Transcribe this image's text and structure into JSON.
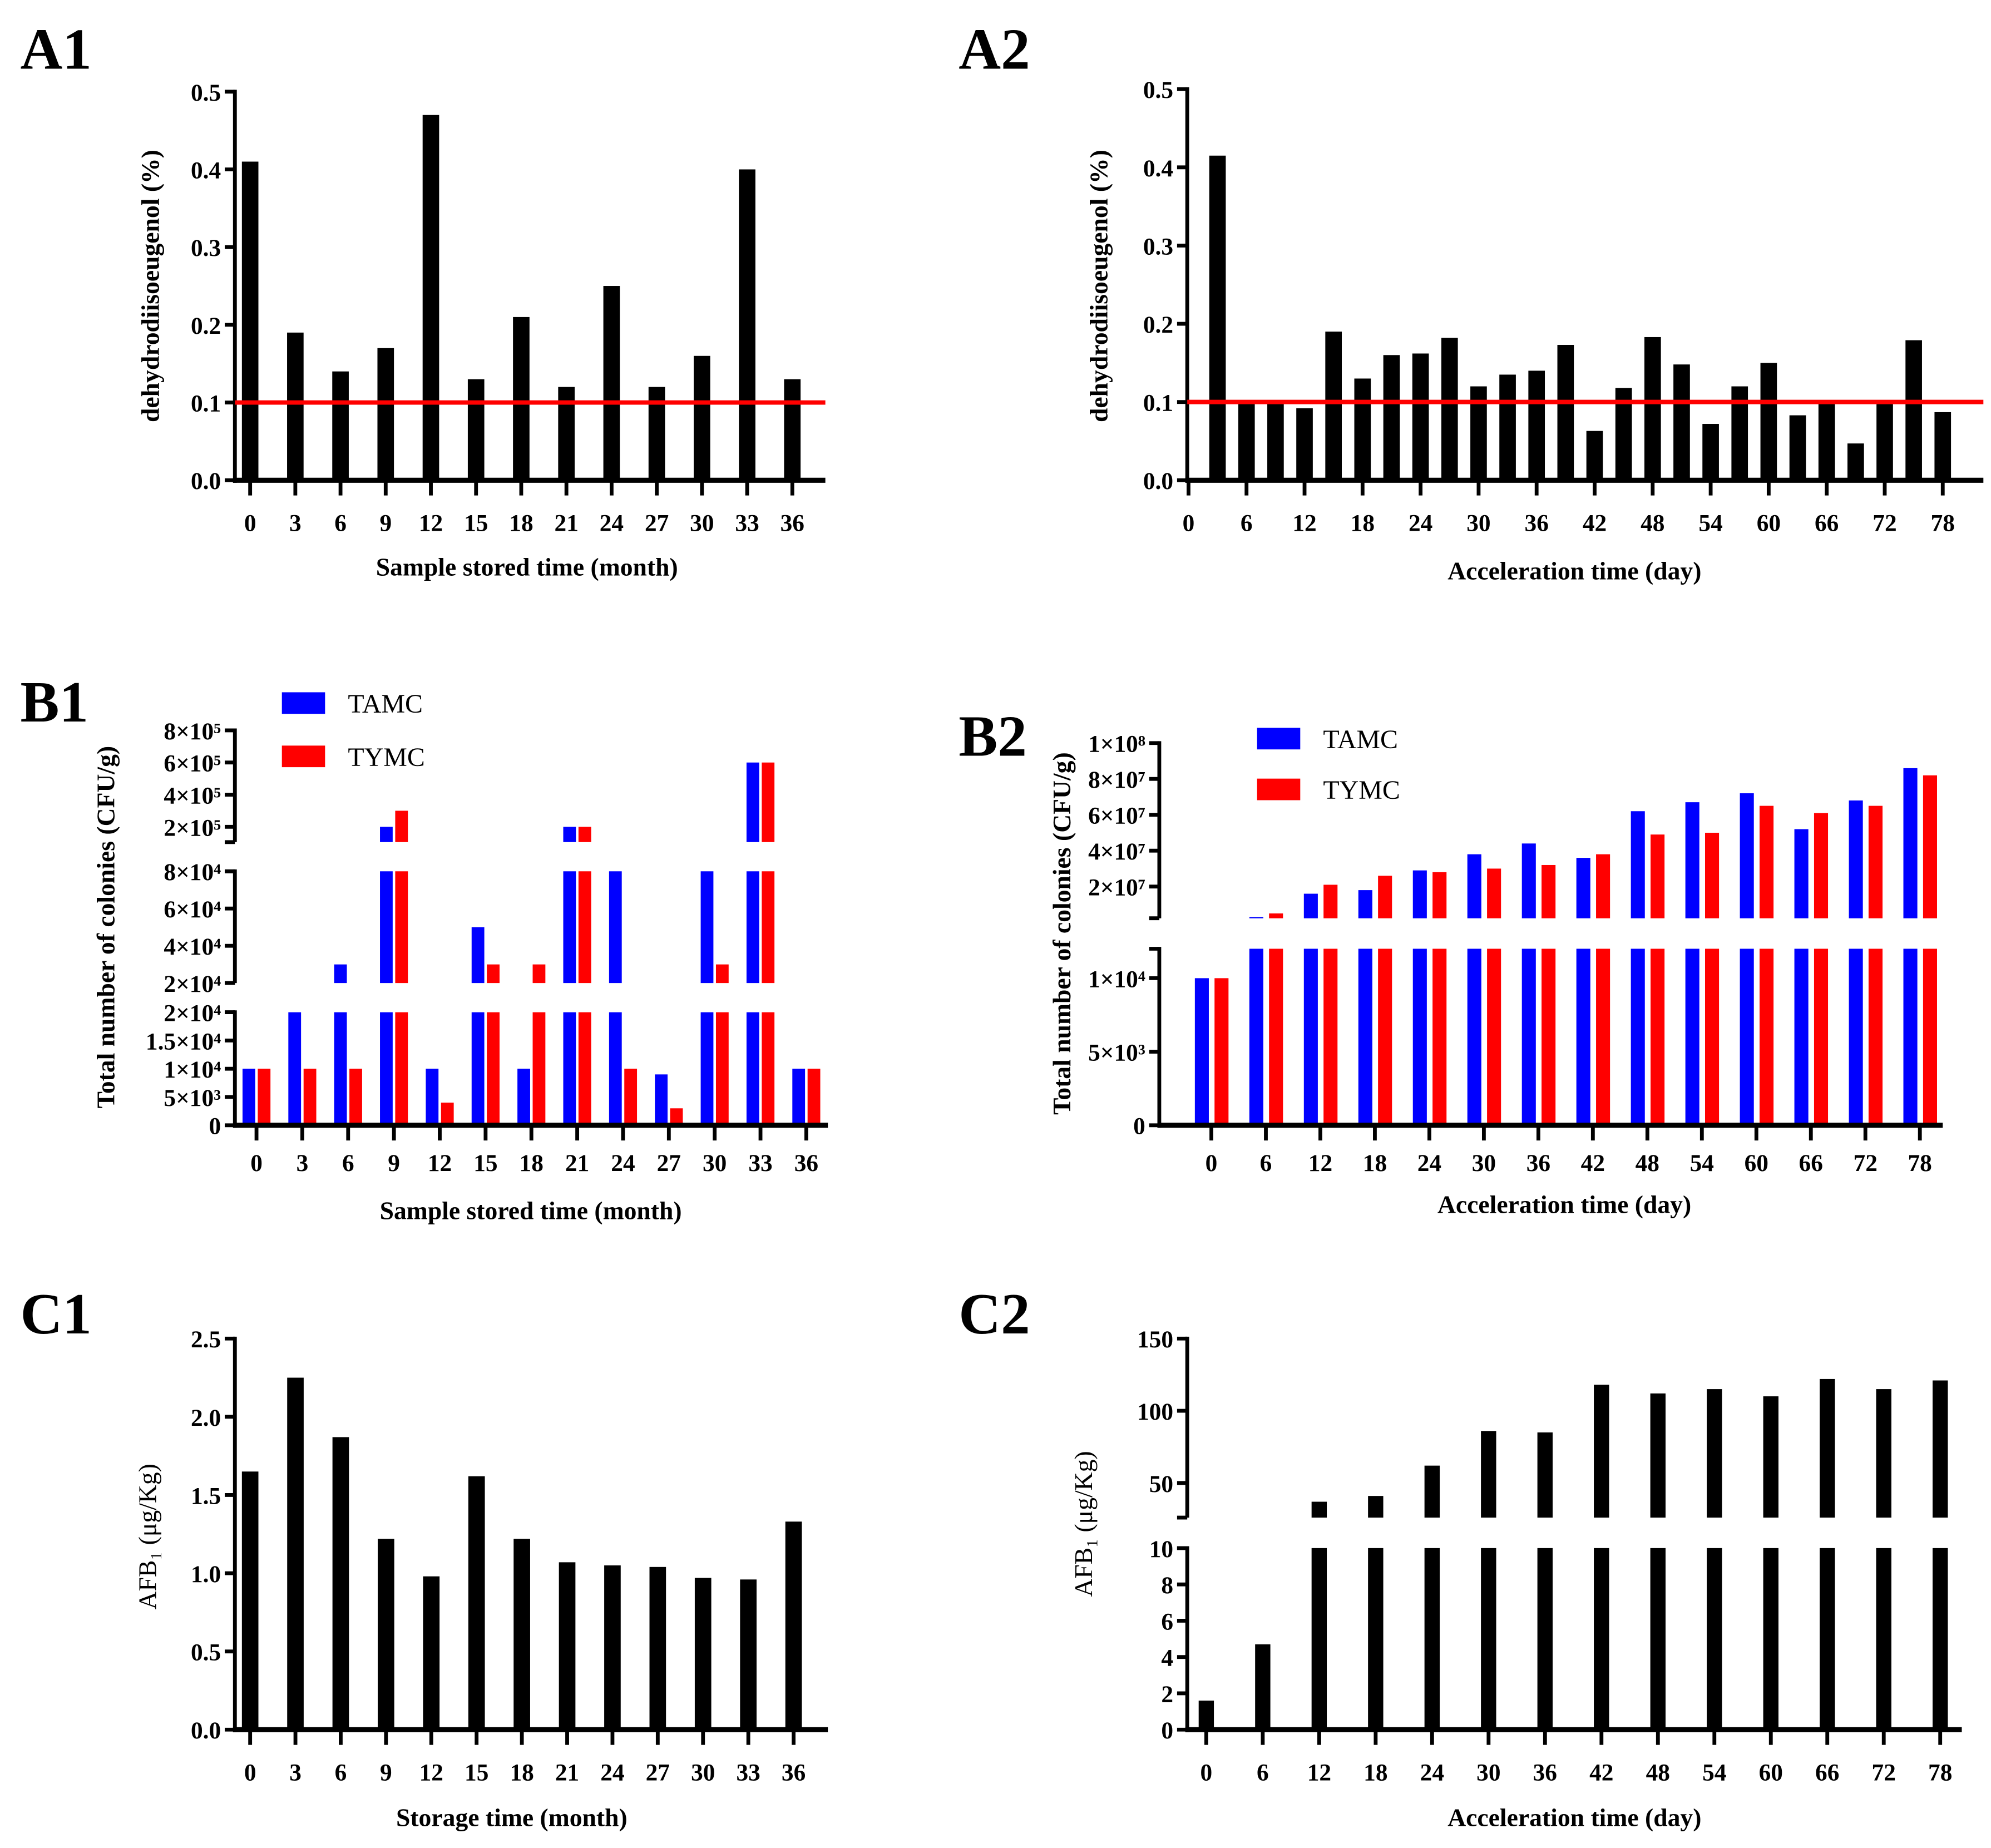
{
  "chart_data": [
    {
      "panel": "A1",
      "type": "bar",
      "xlabel": "Sample stored time (month)",
      "ylabel": "dehydrodiisoeugenol (%)",
      "xticks": [
        0,
        3,
        6,
        9,
        12,
        15,
        18,
        21,
        24,
        27,
        30,
        33,
        36
      ],
      "xtick_labels": [
        "0",
        "3",
        "6",
        "9",
        "12",
        "15",
        "18",
        "21",
        "24",
        "27",
        "30",
        "33",
        "36"
      ],
      "yticks": [
        0,
        0.1,
        0.2,
        0.3,
        0.4,
        0.5
      ],
      "ytick_labels": [
        "0.0",
        "0.1",
        "0.2",
        "0.3",
        "0.4",
        "0.5"
      ],
      "ylim": [
        0,
        0.5
      ],
      "series": [
        {
          "name": "dehydrodiisoeugenol",
          "color": "#000000",
          "x": [
            0,
            3,
            6,
            9,
            12,
            15,
            18,
            21,
            24,
            27,
            30,
            33,
            36
          ],
          "values": [
            0.41,
            0.19,
            0.14,
            0.17,
            0.47,
            0.13,
            0.21,
            0.12,
            0.25,
            0.12,
            0.16,
            0.4,
            0.13
          ]
        }
      ],
      "reference_line": {
        "value": 0.1,
        "color": "#ff0000"
      }
    },
    {
      "panel": "A2",
      "type": "bar",
      "xlabel": "Acceleration time (day)",
      "ylabel": "dehydrodiisoeugenol (%)",
      "xticks": [
        0,
        6,
        12,
        18,
        24,
        30,
        36,
        42,
        48,
        54,
        60,
        66,
        72,
        78
      ],
      "xtick_labels": [
        "0",
        "6",
        "12",
        "18",
        "24",
        "30",
        "36",
        "42",
        "48",
        "54",
        "60",
        "66",
        "72",
        "78"
      ],
      "yticks": [
        0,
        0.1,
        0.2,
        0.3,
        0.4,
        0.5
      ],
      "ytick_labels": [
        "0.0",
        "0.1",
        "0.2",
        "0.3",
        "0.4",
        "0.5"
      ],
      "ylim": [
        0,
        0.5
      ],
      "series": [
        {
          "name": "dehydrodiisoeugenol",
          "color": "#000000",
          "x": [
            3,
            6,
            9,
            12,
            15,
            18,
            21,
            24,
            27,
            30,
            33,
            36,
            39,
            42,
            45,
            48,
            51,
            54,
            57,
            60,
            63,
            66,
            69,
            72,
            75,
            78
          ],
          "values": [
            0.415,
            0.1,
            0.1,
            0.092,
            0.19,
            0.13,
            0.16,
            0.162,
            0.182,
            0.12,
            0.135,
            0.14,
            0.173,
            0.063,
            0.118,
            0.183,
            0.148,
            0.072,
            0.12,
            0.15,
            0.083,
            0.1,
            0.047,
            0.102,
            0.179,
            0.087
          ]
        }
      ],
      "reference_line": {
        "value": 0.1,
        "color": "#ff0000"
      }
    },
    {
      "panel": "B1",
      "type": "bar",
      "xlabel": "Sample stored time (month)",
      "ylabel": "Total number of colonies (CFU/g)",
      "xticks": [
        0,
        3,
        6,
        9,
        12,
        15,
        18,
        21,
        24,
        27,
        30,
        33,
        36
      ],
      "xtick_labels": [
        "0",
        "3",
        "6",
        "9",
        "12",
        "15",
        "18",
        "21",
        "24",
        "27",
        "30",
        "33",
        "36"
      ],
      "yticks": [
        0,
        5000,
        10000,
        15000,
        20000,
        20000.001,
        40000,
        60000,
        80000,
        200000,
        400000,
        600000,
        800000
      ],
      "ytick_labels": [
        "0",
        "5×10³",
        "1×10⁴",
        "1.5×10⁴",
        "2×10⁴",
        "2×10⁴",
        "4×10⁴",
        "6×10⁴",
        "8×10⁴",
        "2×10⁵",
        "4×10⁵",
        "6×10⁵",
        "8×10⁵"
      ],
      "axis_breaks": [
        [
          20000,
          20000
        ],
        [
          80000,
          105000
        ]
      ],
      "ylim": [
        0,
        800000
      ],
      "legend": "top-left",
      "series": [
        {
          "name": "TAMC",
          "color": "#0000ff",
          "x": [
            0,
            3,
            6,
            9,
            12,
            15,
            18,
            21,
            24,
            27,
            30,
            33,
            36
          ],
          "values": [
            10000,
            20000,
            30000,
            200000,
            10000,
            50000,
            10000,
            200000,
            80000,
            9000,
            80000,
            600000,
            10000
          ]
        },
        {
          "name": "TYMC",
          "color": "#ff0000",
          "x": [
            0,
            3,
            6,
            9,
            12,
            15,
            18,
            21,
            24,
            27,
            30,
            33,
            36
          ],
          "values": [
            10000,
            10000,
            10000,
            300000,
            4000,
            30000,
            30000,
            200000,
            10000,
            3000,
            30000,
            600000,
            10000
          ]
        }
      ]
    },
    {
      "panel": "B2",
      "type": "bar",
      "xlabel": "Acceleration time (day)",
      "ylabel": "Total number of colonies (CFU/g)",
      "xticks": [
        0,
        6,
        12,
        18,
        24,
        30,
        36,
        42,
        48,
        54,
        60,
        66,
        72,
        78
      ],
      "xtick_labels": [
        "0",
        "6",
        "12",
        "18",
        "24",
        "30",
        "36",
        "42",
        "48",
        "54",
        "60",
        "66",
        "72",
        "78"
      ],
      "yticks": [
        0,
        5000,
        10000,
        20000000,
        40000000,
        60000000,
        80000000,
        100000000
      ],
      "ytick_labels": [
        "0",
        "5×10³",
        "1×10⁴",
        "2×10⁷",
        "4×10⁷",
        "6×10⁷",
        "8×10⁷",
        "1×10⁸"
      ],
      "axis_breaks": [
        [
          12000,
          2300000
        ]
      ],
      "ylim": [
        0,
        100000000
      ],
      "legend": "top-left",
      "series": [
        {
          "name": "TAMC",
          "color": "#0000ff",
          "x": [
            0,
            6,
            12,
            18,
            24,
            30,
            36,
            42,
            48,
            54,
            60,
            66,
            72,
            78
          ],
          "values": [
            10000,
            3000000,
            16000000,
            18000000,
            29000000,
            38000000,
            44000000,
            36000000,
            62000000,
            67000000,
            72000000,
            52000000,
            68000000,
            86000000
          ]
        },
        {
          "name": "TYMC",
          "color": "#ff0000",
          "x": [
            0,
            6,
            12,
            18,
            24,
            30,
            36,
            42,
            48,
            54,
            60,
            66,
            72,
            78
          ],
          "values": [
            10000,
            5000000,
            21000000,
            26000000,
            28000000,
            30000000,
            32000000,
            38000000,
            49000000,
            50000000,
            65000000,
            61000000,
            65000000,
            82000000
          ]
        }
      ]
    },
    {
      "panel": "C1",
      "type": "bar",
      "xlabel": "Storage time (month)",
      "ylabel": "AFB₁ (μg/Kg)",
      "xticks": [
        0,
        3,
        6,
        9,
        12,
        15,
        18,
        21,
        24,
        27,
        30,
        33,
        36
      ],
      "xtick_labels": [
        "0",
        "3",
        "6",
        "9",
        "12",
        "15",
        "18",
        "21",
        "24",
        "27",
        "30",
        "33",
        "36"
      ],
      "yticks": [
        0,
        0.5,
        1.0,
        1.5,
        2.0,
        2.5
      ],
      "ytick_labels": [
        "0.0",
        "0.5",
        "1.0",
        "1.5",
        "2.0",
        "2.5"
      ],
      "ylim": [
        0,
        2.5
      ],
      "series": [
        {
          "name": "AFB1",
          "color": "#000000",
          "x": [
            0,
            3,
            6,
            9,
            12,
            15,
            18,
            21,
            24,
            27,
            30,
            33,
            36
          ],
          "values": [
            1.65,
            2.25,
            1.87,
            1.22,
            0.98,
            1.62,
            1.22,
            1.07,
            1.05,
            1.04,
            0.97,
            0.96,
            1.33
          ]
        }
      ]
    },
    {
      "panel": "C2",
      "type": "bar",
      "xlabel": "Acceleration time (day)",
      "ylabel": "AFB₁ (μg/Kg)",
      "xticks": [
        0,
        6,
        12,
        18,
        24,
        30,
        36,
        42,
        48,
        54,
        60,
        66,
        72,
        78
      ],
      "xtick_labels": [
        "0",
        "6",
        "12",
        "18",
        "24",
        "30",
        "36",
        "42",
        "48",
        "54",
        "60",
        "66",
        "72",
        "78"
      ],
      "yticks": [
        0,
        2,
        4,
        6,
        8,
        10,
        50,
        100,
        150
      ],
      "ytick_labels": [
        "0",
        "2",
        "4",
        "6",
        "8",
        "10",
        "50",
        "100",
        "150"
      ],
      "axis_breaks": [
        [
          10,
          26
        ]
      ],
      "ylim": [
        0,
        150
      ],
      "series": [
        {
          "name": "AFB1",
          "color": "#000000",
          "x": [
            0,
            6,
            12,
            18,
            24,
            30,
            36,
            42,
            48,
            54,
            60,
            66,
            72,
            78
          ],
          "values": [
            1.6,
            4.7,
            37,
            41,
            62,
            86,
            85,
            118,
            112,
            115,
            110,
            122,
            115,
            121
          ]
        }
      ]
    }
  ]
}
